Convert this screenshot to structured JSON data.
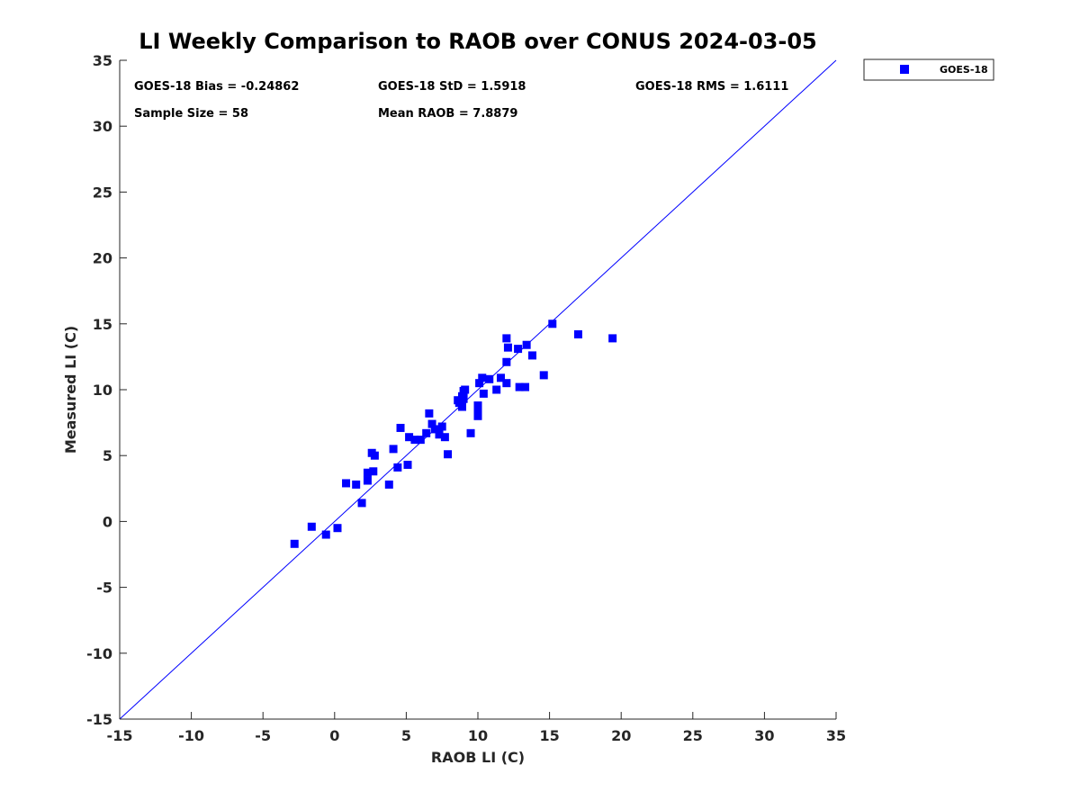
{
  "chart_data": {
    "type": "scatter",
    "title": "LI Weekly Comparison to RAOB over CONUS 2024-03-05",
    "xlabel": "RAOB LI (C)",
    "ylabel": "Measured LI (C)",
    "xlim": [
      -15,
      35
    ],
    "ylim": [
      -15,
      35
    ],
    "xticks": [
      "-15",
      "-10",
      "-5",
      "0",
      "5",
      "10",
      "15",
      "20",
      "25",
      "30",
      "35"
    ],
    "yticks": [
      "-15",
      "-10",
      "-5",
      "0",
      "5",
      "10",
      "15",
      "20",
      "25",
      "30",
      "35"
    ],
    "grid": false,
    "legend_position": "outside-top-right",
    "reference_line": {
      "name": "1:1 line",
      "from": [
        -15,
        -15
      ],
      "to": [
        35,
        35
      ],
      "color": "#0000ff"
    },
    "stats": {
      "bias": "GOES-18 Bias = -0.24862",
      "std": "GOES-18 StD = 1.5918",
      "rms": "GOES-18 RMS = 1.6111",
      "sample_size": "Sample Size = 58",
      "mean_raob": "Mean RAOB = 7.8879"
    },
    "series": [
      {
        "name": "GOES-18",
        "color": "#0000ff",
        "marker": "square",
        "points": [
          [
            -2.8,
            -1.7
          ],
          [
            -1.6,
            -0.4
          ],
          [
            -0.6,
            -1.0
          ],
          [
            0.2,
            -0.5
          ],
          [
            0.8,
            2.9
          ],
          [
            1.5,
            2.8
          ],
          [
            1.9,
            1.4
          ],
          [
            2.3,
            3.1
          ],
          [
            2.3,
            3.7
          ],
          [
            2.6,
            5.2
          ],
          [
            2.7,
            3.8
          ],
          [
            2.8,
            5.0
          ],
          [
            3.8,
            2.8
          ],
          [
            4.1,
            5.5
          ],
          [
            4.4,
            4.1
          ],
          [
            4.6,
            7.1
          ],
          [
            5.1,
            4.3
          ],
          [
            5.2,
            6.4
          ],
          [
            5.6,
            6.2
          ],
          [
            6.0,
            6.2
          ],
          [
            6.4,
            6.7
          ],
          [
            6.6,
            8.2
          ],
          [
            6.8,
            7.4
          ],
          [
            7.0,
            7.0
          ],
          [
            7.3,
            6.6
          ],
          [
            7.5,
            7.2
          ],
          [
            7.7,
            6.4
          ],
          [
            7.9,
            5.1
          ],
          [
            8.6,
            9.2
          ],
          [
            8.7,
            9.0
          ],
          [
            8.9,
            9.5
          ],
          [
            8.9,
            8.7
          ],
          [
            9.0,
            9.9
          ],
          [
            9.1,
            10.0
          ],
          [
            9.5,
            6.7
          ],
          [
            10.0,
            8.8
          ],
          [
            10.0,
            8.3
          ],
          [
            10.0,
            8.0
          ],
          [
            10.1,
            10.5
          ],
          [
            10.3,
            10.9
          ],
          [
            10.4,
            9.7
          ],
          [
            10.8,
            10.8
          ],
          [
            11.3,
            10.0
          ],
          [
            11.6,
            10.9
          ],
          [
            12.0,
            12.1
          ],
          [
            12.0,
            13.9
          ],
          [
            12.0,
            10.5
          ],
          [
            12.1,
            13.2
          ],
          [
            12.8,
            13.1
          ],
          [
            12.9,
            10.2
          ],
          [
            13.3,
            10.2
          ],
          [
            13.4,
            13.4
          ],
          [
            13.8,
            12.6
          ],
          [
            14.6,
            11.1
          ],
          [
            15.2,
            15.0
          ],
          [
            17.0,
            14.2
          ],
          [
            19.4,
            13.9
          ],
          [
            9.0,
            9.3
          ]
        ]
      }
    ]
  }
}
